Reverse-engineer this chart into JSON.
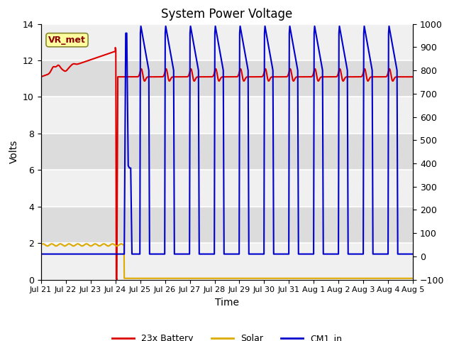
{
  "title": "System Power Voltage",
  "xlabel": "Time",
  "ylabel": "Volts",
  "annotation_text": "VR_met",
  "background_color": "#ffffff",
  "plot_bg_light": "#f0f0f0",
  "plot_bg_dark": "#dcdcdc",
  "ylim_left": [
    0,
    14
  ],
  "ylim_right": [
    -100,
    1000
  ],
  "yticks_left": [
    0,
    2,
    4,
    6,
    8,
    10,
    12,
    14
  ],
  "yticks_right": [
    -100,
    0,
    100,
    200,
    300,
    400,
    500,
    600,
    700,
    800,
    900,
    1000
  ],
  "legend_entries": [
    "23x Battery",
    "Solar",
    "CM1_in"
  ],
  "color_battery": "#dd0000",
  "color_solar": "#ddaa00",
  "color_cm1": "#0000cc",
  "lw_battery": 1.5,
  "lw_solar": 1.5,
  "lw_cm1": 1.5,
  "xtick_labels": [
    "Jul 21",
    "Jul 22",
    "Jul 23",
    "Jul 24",
    "Jul 25",
    "Jul 26",
    "Jul 27",
    "Jul 28",
    "Jul 29",
    "Jul 30",
    "Jul 31",
    "Aug 1",
    "Aug 2",
    "Aug 3",
    "Aug 4",
    "Aug 5"
  ],
  "annotation_box_facecolor": "#ffffa0",
  "annotation_box_edgecolor": "#888833",
  "annotation_text_color": "#880000",
  "title_fontsize": 12,
  "label_fontsize": 10,
  "tick_fontsize": 9
}
